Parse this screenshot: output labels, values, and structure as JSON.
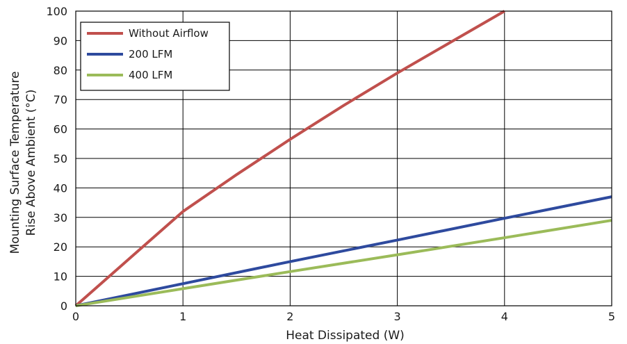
{
  "chart_data": {
    "type": "line",
    "xlabel": "Heat Dissipated (W)",
    "ylabel_lines": [
      "Mounting Surface Temperature",
      "Rise Above  Ambient (°C)"
    ],
    "xlim": [
      0,
      5
    ],
    "ylim": [
      0,
      100
    ],
    "x_ticks": [
      0,
      1,
      2,
      3,
      4,
      5
    ],
    "y_ticks": [
      0,
      10,
      20,
      30,
      40,
      50,
      60,
      70,
      80,
      90,
      100
    ],
    "x_tick_labels": [
      "0",
      "1",
      "2",
      "3",
      "4",
      "5"
    ],
    "y_tick_labels": [
      "0",
      "10",
      "20",
      "30",
      "40",
      "50",
      "60",
      "70",
      "80",
      "90",
      "100"
    ],
    "grid": true,
    "legend_position": "top-left",
    "series": [
      {
        "name": "Without Airflow",
        "color": "#c0504d",
        "x": [
          0,
          0.5,
          1,
          1.5,
          2,
          2.5,
          3,
          3.5,
          4
        ],
        "y": [
          0,
          16,
          32,
          44.5,
          56.5,
          68,
          79,
          89.5,
          100
        ]
      },
      {
        "name": "200 LFM",
        "color": "#2e4a9e",
        "x": [
          0,
          1,
          2,
          3,
          4,
          5
        ],
        "y": [
          0,
          7.5,
          15,
          22.3,
          29.7,
          37
        ]
      },
      {
        "name": "400 LFM",
        "color": "#9bbb59",
        "x": [
          0,
          1,
          2,
          3,
          4,
          5
        ],
        "y": [
          0,
          5.8,
          11.6,
          17.3,
          23.1,
          29
        ]
      }
    ]
  }
}
